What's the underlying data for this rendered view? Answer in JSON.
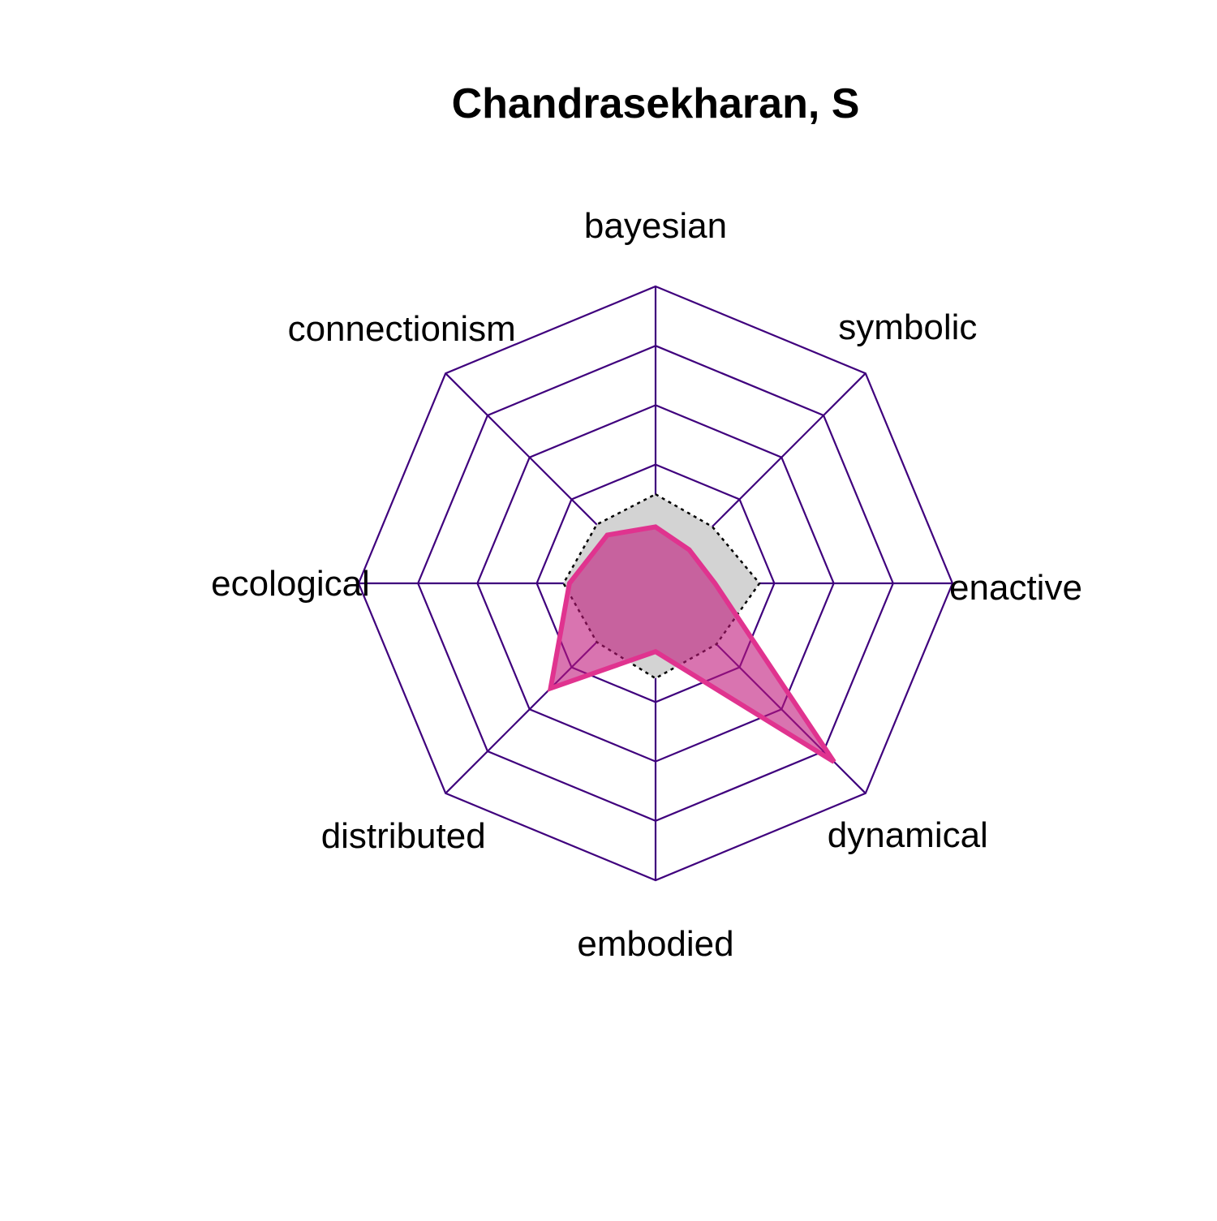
{
  "chart_data": {
    "type": "radar",
    "title": "Chandrasekharan, S",
    "axes": [
      "bayesian",
      "symbolic",
      "enactive",
      "dynamical",
      "embodied",
      "distributed",
      "ecological",
      "connectionism"
    ],
    "rlim": [
      0,
      1
    ],
    "grid_levels": [
      0.2,
      0.4,
      0.6,
      0.8,
      1.0
    ],
    "series": [
      {
        "values": [
          0.19,
          0.16,
          0.2,
          0.85,
          0.23,
          0.5,
          0.29,
          0.23
        ],
        "fill": "#c0187c",
        "line": "#e0338f"
      },
      {
        "values": [
          0.3,
          0.27,
          0.35,
          0.29,
          0.32,
          0.28,
          0.31,
          0.28
        ],
        "fill": "#d3d3d3",
        "line": "#000000",
        "dashed": true
      }
    ],
    "colors": {
      "grid": "#3f007d"
    }
  }
}
